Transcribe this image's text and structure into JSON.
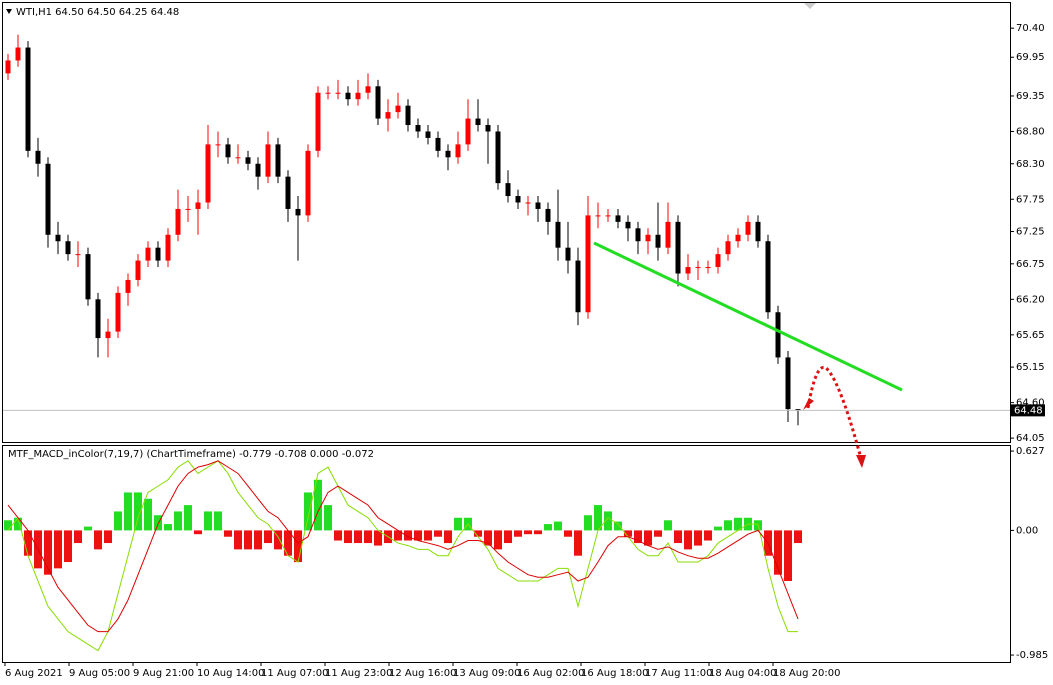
{
  "chart_data": [
    {
      "type": "candlestick",
      "title": "WTI,H1  64.50 64.50 64.25 64.48",
      "up_color": "#ff0000",
      "down_color": "#000000",
      "ylim": [
        63.99,
        70.79
      ],
      "yticks": [
        {
          "value": 70.4,
          "label": "70.40"
        },
        {
          "value": 69.95,
          "label": "69.95"
        },
        {
          "value": 69.35,
          "label": "69.35"
        },
        {
          "value": 68.8,
          "label": "68.80"
        },
        {
          "value": 68.3,
          "label": "68.30"
        },
        {
          "value": 67.75,
          "label": "67.75"
        },
        67.25,
        66.75,
        {
          "value": 66.2,
          "label": "66.20"
        },
        65.65,
        65.15,
        {
          "value": 64.6,
          "label": "64.60"
        },
        64.05
      ],
      "candles": [
        [
          69.7,
          70.0,
          69.6,
          69.9
        ],
        [
          69.9,
          70.3,
          69.8,
          70.1
        ],
        [
          70.1,
          70.2,
          68.4,
          68.5
        ],
        [
          68.5,
          68.7,
          68.1,
          68.3
        ],
        [
          68.3,
          68.4,
          67.0,
          67.2
        ],
        [
          67.2,
          67.4,
          66.9,
          67.1
        ],
        [
          67.1,
          67.2,
          66.8,
          66.9
        ],
        [
          66.9,
          67.1,
          66.7,
          66.9
        ],
        [
          66.9,
          67.0,
          66.1,
          66.2
        ],
        [
          66.2,
          66.3,
          65.3,
          65.6
        ],
        [
          65.6,
          65.9,
          65.3,
          65.7
        ],
        [
          65.7,
          66.4,
          65.6,
          66.3
        ],
        [
          66.3,
          66.6,
          66.1,
          66.5
        ],
        [
          66.5,
          66.9,
          66.4,
          66.8
        ],
        [
          66.8,
          67.1,
          66.7,
          67.0
        ],
        [
          67.0,
          67.1,
          66.7,
          66.8
        ],
        [
          66.8,
          67.3,
          66.7,
          67.2
        ],
        [
          67.2,
          67.9,
          67.1,
          67.6
        ],
        [
          67.6,
          67.8,
          67.4,
          67.6
        ],
        [
          67.6,
          67.9,
          67.2,
          67.7
        ],
        [
          67.7,
          68.9,
          67.6,
          68.6
        ],
        [
          68.6,
          68.8,
          68.4,
          68.6
        ],
        [
          68.6,
          68.7,
          68.3,
          68.4
        ],
        [
          68.4,
          68.6,
          68.3,
          68.4
        ],
        [
          68.4,
          68.5,
          68.2,
          68.3
        ],
        [
          68.3,
          68.4,
          67.9,
          68.1
        ],
        [
          68.1,
          68.8,
          68.0,
          68.6
        ],
        [
          68.6,
          68.7,
          68.0,
          68.1
        ],
        [
          68.1,
          68.2,
          67.4,
          67.6
        ],
        [
          67.6,
          67.8,
          66.8,
          67.5
        ],
        [
          67.5,
          68.6,
          67.4,
          68.5
        ],
        [
          68.5,
          69.5,
          68.4,
          69.4
        ],
        [
          69.4,
          69.5,
          69.3,
          69.4
        ],
        [
          69.4,
          69.6,
          69.3,
          69.4
        ],
        [
          69.4,
          69.5,
          69.2,
          69.3
        ],
        [
          69.3,
          69.6,
          69.2,
          69.4
        ],
        [
          69.4,
          69.7,
          69.3,
          69.5
        ],
        [
          69.5,
          69.6,
          68.9,
          69.0
        ],
        [
          69.0,
          69.3,
          68.8,
          69.1
        ],
        [
          69.1,
          69.4,
          69.0,
          69.2
        ],
        [
          69.2,
          69.3,
          68.8,
          68.9
        ],
        [
          68.9,
          69.0,
          68.7,
          68.8
        ],
        [
          68.8,
          68.9,
          68.6,
          68.7
        ],
        [
          68.7,
          68.8,
          68.4,
          68.5
        ],
        [
          68.5,
          68.6,
          68.2,
          68.4
        ],
        [
          68.4,
          68.8,
          68.3,
          68.6
        ],
        [
          68.6,
          69.3,
          68.5,
          69.0
        ],
        [
          69.0,
          69.3,
          68.8,
          68.9
        ],
        [
          68.9,
          69.0,
          68.3,
          68.8
        ],
        [
          68.8,
          68.9,
          67.9,
          68.0
        ],
        [
          68.0,
          68.2,
          67.7,
          67.8
        ],
        [
          67.8,
          67.9,
          67.6,
          67.7
        ],
        [
          67.7,
          67.8,
          67.5,
          67.7
        ],
        [
          67.7,
          67.8,
          67.4,
          67.6
        ],
        [
          67.6,
          67.7,
          67.2,
          67.4
        ],
        [
          67.4,
          67.9,
          66.8,
          67.0
        ],
        [
          67.0,
          67.4,
          66.6,
          66.8
        ],
        [
          66.8,
          67.0,
          65.8,
          66.0
        ],
        [
          66.0,
          67.8,
          65.9,
          67.5
        ],
        [
          67.5,
          67.7,
          67.3,
          67.5
        ],
        [
          67.5,
          67.6,
          67.4,
          67.5
        ],
        [
          67.5,
          67.6,
          67.3,
          67.4
        ],
        [
          67.4,
          67.5,
          67.1,
          67.3
        ],
        [
          67.3,
          67.4,
          66.9,
          67.1
        ],
        [
          67.1,
          67.3,
          66.9,
          67.2
        ],
        [
          67.2,
          67.7,
          66.8,
          67.0
        ],
        [
          67.0,
          67.7,
          66.9,
          67.4
        ],
        [
          67.4,
          67.5,
          66.4,
          66.6
        ],
        [
          66.6,
          66.9,
          66.5,
          66.7
        ],
        [
          66.7,
          66.8,
          66.5,
          66.7
        ],
        [
          66.7,
          66.8,
          66.6,
          66.7
        ],
        [
          66.7,
          67.0,
          66.6,
          66.9
        ],
        [
          66.9,
          67.2,
          66.8,
          67.1
        ],
        [
          67.1,
          67.3,
          67.0,
          67.2
        ],
        [
          67.2,
          67.5,
          67.1,
          67.4
        ],
        [
          67.4,
          67.5,
          67.0,
          67.1
        ],
        [
          67.1,
          67.2,
          65.9,
          66.0
        ],
        [
          66.0,
          66.1,
          65.2,
          65.3
        ],
        [
          65.3,
          65.4,
          64.3,
          64.5
        ],
        [
          64.5,
          64.5,
          64.25,
          64.48
        ]
      ]
    },
    {
      "type": "macd",
      "title": "MTF_MACD_inColor(7,19,7) (ChartTimeframe) -0.779 -0.708 0.000 -0.072",
      "positive_color": "#22dd22",
      "negative_color": "#ee1111",
      "ylim": [
        -1.04,
        0.667
      ],
      "yticks": [
        0.627,
        {
          "value": 0,
          "label": "0.00"
        },
        -0.985
      ],
      "histogram": [
        0.08,
        0.1,
        -0.2,
        -0.3,
        -0.35,
        -0.3,
        -0.25,
        -0.1,
        0.03,
        -0.15,
        -0.1,
        0.15,
        0.3,
        0.3,
        0.25,
        0.12,
        0.05,
        0.15,
        0.2,
        -0.03,
        0.15,
        0.15,
        -0.05,
        -0.15,
        -0.15,
        -0.15,
        -0.1,
        -0.15,
        -0.2,
        -0.25,
        0.3,
        0.4,
        0.2,
        -0.08,
        -0.1,
        -0.1,
        -0.1,
        -0.12,
        -0.1,
        -0.08,
        -0.08,
        -0.08,
        -0.08,
        -0.05,
        -0.1,
        0.1,
        0.1,
        -0.05,
        -0.12,
        -0.15,
        -0.1,
        -0.05,
        -0.03,
        -0.03,
        0.05,
        0.07,
        -0.05,
        -0.2,
        0.12,
        0.2,
        0.15,
        0.07,
        -0.05,
        -0.1,
        -0.12,
        -0.05,
        0.08,
        -0.1,
        -0.15,
        -0.12,
        -0.08,
        0.03,
        0.08,
        0.1,
        0.1,
        0.08,
        -0.2,
        -0.35,
        -0.4,
        -0.1
      ],
      "series": [
        {
          "color": "#88dd00",
          "values": [
            0.0,
            0.1,
            -0.2,
            -0.4,
            -0.6,
            -0.7,
            -0.8,
            -0.85,
            -0.9,
            -0.95,
            -0.8,
            -0.5,
            -0.2,
            0.1,
            0.3,
            0.35,
            0.4,
            0.5,
            0.55,
            0.45,
            0.5,
            0.55,
            0.45,
            0.3,
            0.2,
            0.1,
            0.05,
            -0.05,
            -0.2,
            -0.25,
            0.1,
            0.45,
            0.5,
            0.35,
            0.2,
            0.15,
            0.1,
            0.0,
            -0.05,
            -0.1,
            -0.12,
            -0.15,
            -0.15,
            -0.2,
            -0.2,
            -0.05,
            0.05,
            -0.05,
            -0.15,
            -0.3,
            -0.35,
            -0.4,
            -0.4,
            -0.4,
            -0.35,
            -0.3,
            -0.3,
            -0.6,
            -0.3,
            0.0,
            0.1,
            0.05,
            -0.05,
            -0.15,
            -0.2,
            -0.2,
            -0.1,
            -0.25,
            -0.25,
            -0.25,
            -0.2,
            -0.1,
            -0.05,
            0.0,
            0.05,
            0.05,
            -0.3,
            -0.6,
            -0.8,
            -0.8
          ]
        },
        {
          "color": "#dd0000",
          "values": [
            0.2,
            0.1,
            0.0,
            -0.15,
            -0.3,
            -0.45,
            -0.55,
            -0.65,
            -0.75,
            -0.8,
            -0.8,
            -0.7,
            -0.55,
            -0.35,
            -0.15,
            0.05,
            0.2,
            0.35,
            0.45,
            0.5,
            0.52,
            0.55,
            0.5,
            0.45,
            0.35,
            0.25,
            0.15,
            0.1,
            0.0,
            -0.1,
            -0.05,
            0.15,
            0.3,
            0.35,
            0.3,
            0.25,
            0.2,
            0.1,
            0.05,
            0.0,
            -0.05,
            -0.08,
            -0.1,
            -0.12,
            -0.15,
            -0.12,
            -0.08,
            -0.08,
            -0.1,
            -0.18,
            -0.25,
            -0.3,
            -0.35,
            -0.37,
            -0.37,
            -0.35,
            -0.33,
            -0.4,
            -0.37,
            -0.25,
            -0.12,
            -0.05,
            -0.05,
            -0.08,
            -0.12,
            -0.15,
            -0.13,
            -0.17,
            -0.2,
            -0.22,
            -0.22,
            -0.18,
            -0.13,
            -0.08,
            -0.03,
            0.0,
            -0.1,
            -0.3,
            -0.5,
            -0.7
          ]
        }
      ]
    }
  ],
  "time_axis": [
    "6 Aug 2021",
    "9 Aug 05:00",
    "9 Aug 21:00",
    "10 Aug 14:00",
    "11 Aug 07:00",
    "11 Aug 23:00",
    "12 Aug 16:00",
    "13 Aug 09:00",
    "16 Aug 02:00",
    "16 Aug 18:00",
    "17 Aug 11:00",
    "18 Aug 04:00",
    "18 Aug 20:00"
  ]
}
